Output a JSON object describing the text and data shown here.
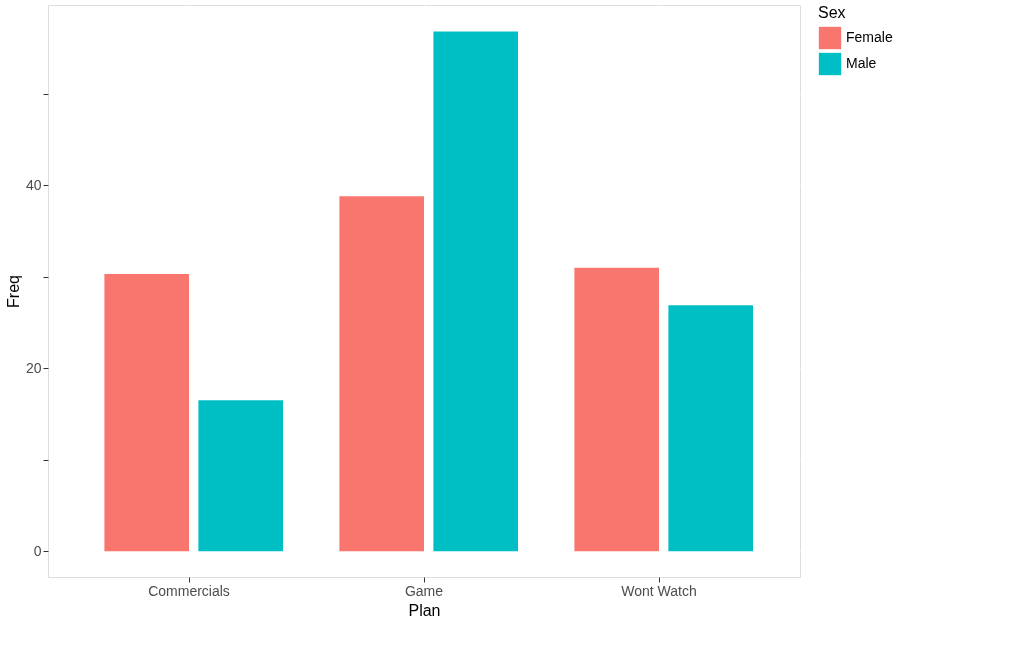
{
  "chart_data": {
    "type": "bar",
    "xlabel": "Plan",
    "ylabel": "Freq",
    "legend_title": "Sex",
    "categories": [
      "Commercials",
      "Game",
      "Wont Watch"
    ],
    "series": [
      {
        "name": "Female",
        "color": "#f8766d",
        "values": [
          30.3,
          38.8,
          31.0
        ]
      },
      {
        "name": "Male",
        "color": "#00bfc4",
        "values": [
          16.5,
          56.8,
          26.9
        ]
      }
    ],
    "ylim": [
      -2.8,
      59.7
    ],
    "yticks": [
      0,
      {
        "value": 10,
        "label": null
      },
      20,
      {
        "value": 30,
        "label": null
      },
      40,
      {
        "value": 50,
        "label": null
      }
    ],
    "grid": true,
    "legend": "right"
  }
}
